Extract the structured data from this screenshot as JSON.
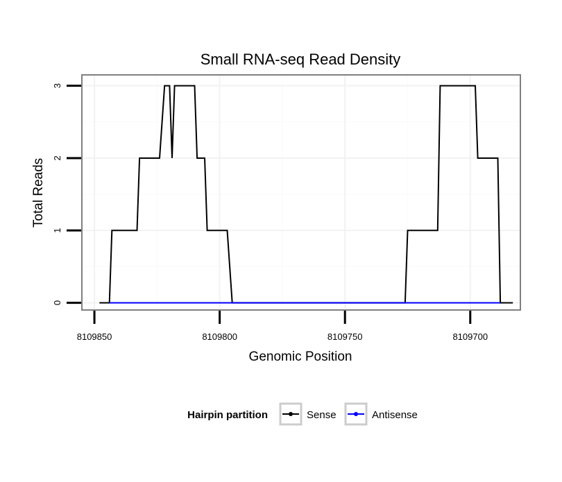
{
  "chart_data": {
    "type": "line",
    "title": "Small RNA-seq Read Density",
    "xlabel": "Genomic Position",
    "ylabel": "Total Reads",
    "x_axis_reversed": true,
    "xlim": [
      8109855,
      8109680
    ],
    "ylim": [
      -0.1,
      3.15
    ],
    "x_ticks": [
      8109850,
      8109800,
      8109750,
      8109700
    ],
    "x_tick_labels": [
      "8109850",
      "8109800",
      "8109750",
      "8109700"
    ],
    "y_ticks": [
      0,
      1,
      2,
      3
    ],
    "y_tick_labels": [
      "0",
      "1",
      "2",
      "3"
    ],
    "grid": true,
    "legend": {
      "title": "Hairpin partition",
      "position": "bottom"
    },
    "series": [
      {
        "name": "Sense",
        "color": "#000000",
        "x": [
          8109848,
          8109844,
          8109843,
          8109833,
          8109832,
          8109824,
          8109822,
          8109820,
          8109819,
          8109818,
          8109817,
          8109810,
          8109809,
          8109806,
          8109805,
          8109797,
          8109795,
          8109726,
          8109725,
          8109713,
          8109712,
          8109698,
          8109697,
          8109689,
          8109688,
          8109683
        ],
        "values": [
          0,
          0,
          1,
          1,
          2,
          2,
          3,
          3,
          2,
          3,
          3,
          3,
          2,
          2,
          1,
          1,
          0,
          0,
          1,
          1,
          3,
          3,
          2,
          2,
          0,
          0
        ]
      },
      {
        "name": "Antisense",
        "color": "#0000ff",
        "x": [
          8109844,
          8109797,
          8109725,
          8109688
        ],
        "values": [
          0,
          0,
          0,
          0
        ]
      }
    ]
  }
}
